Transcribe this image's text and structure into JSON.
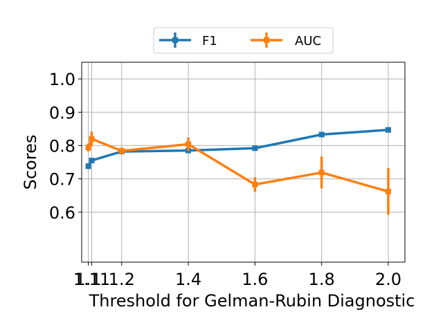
{
  "chart_data": {
    "type": "line",
    "xlabel": "Threshold for Gelman-Rubin Diagnostic",
    "ylabel": "Scores",
    "xlim": [
      1.08,
      2.05
    ],
    "ylim": [
      0.45,
      1.05
    ],
    "xticks": [
      1.1,
      1.11,
      1.2,
      1.4,
      1.6,
      1.8,
      2.0
    ],
    "xtick_labels": [
      "1.1",
      "1.11",
      "1.2",
      "1.4",
      "1.6",
      "1.8",
      "2.0"
    ],
    "yticks": [
      0.6,
      0.7,
      0.8,
      0.9,
      1.0
    ],
    "ytick_labels": [
      "0.6",
      "0.7",
      "0.8",
      "0.9",
      "1.0"
    ],
    "grid": true,
    "legend_position": "top-center",
    "x": [
      1.1,
      1.11,
      1.2,
      1.4,
      1.6,
      1.8,
      2.0
    ],
    "series": [
      {
        "name": "F1",
        "color": "#1f77b4",
        "values": [
          0.738,
          0.755,
          0.782,
          0.785,
          0.792,
          0.833,
          0.847
        ],
        "errors": [
          0.008,
          0.006,
          0.006,
          0.007,
          0.005,
          0.005,
          0.004
        ]
      },
      {
        "name": "AUC",
        "color": "#ff7f0e",
        "values": [
          0.794,
          0.82,
          0.784,
          0.804,
          0.683,
          0.719,
          0.662
        ],
        "errors": [
          0.012,
          0.022,
          0.01,
          0.02,
          0.022,
          0.048,
          0.07
        ]
      }
    ]
  }
}
